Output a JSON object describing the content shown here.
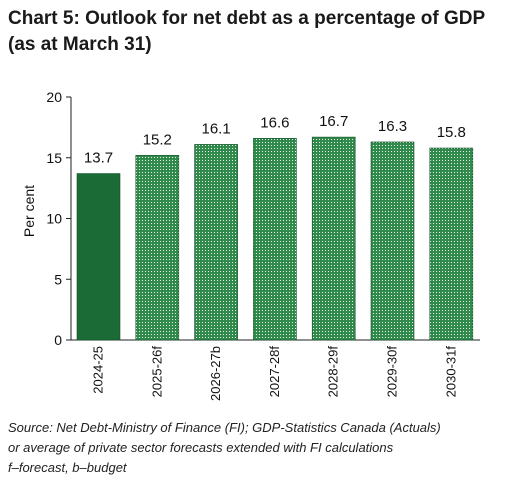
{
  "title_line1": "Chart 5: Outlook for net debt as a percentage of GDP",
  "title_line2": "(as at March 31)",
  "notes": {
    "line1": "Source: Net Debt-Ministry of Finance (FI); GDP-Statistics Canada (Actuals)",
    "line2": "or average of private sector forecasts extended with FI calculations",
    "line3": "f–forecast, b–budget"
  },
  "colors": {
    "actual": "#1a6b35",
    "projected": "#2f8a4b",
    "dot": "#e8f2ea"
  },
  "chart_data": {
    "type": "bar",
    "ylabel": "Per cent",
    "ylim": [
      0,
      20
    ],
    "yticks": [
      0,
      5,
      10,
      15,
      20
    ],
    "categories": [
      "2024-25",
      "2025-26f",
      "2026-27b",
      "2027-28f",
      "2028-29f",
      "2029-30f",
      "2030-31f"
    ],
    "values": [
      13.7,
      15.2,
      16.1,
      16.6,
      16.7,
      16.3,
      15.8
    ],
    "value_labels": [
      "13.7",
      "15.2",
      "16.1",
      "16.6",
      "16.7",
      "16.3",
      "15.8"
    ],
    "fill_pattern": [
      "solid",
      "dotted",
      "dotted",
      "dotted",
      "dotted",
      "dotted",
      "dotted"
    ],
    "grid": false
  }
}
